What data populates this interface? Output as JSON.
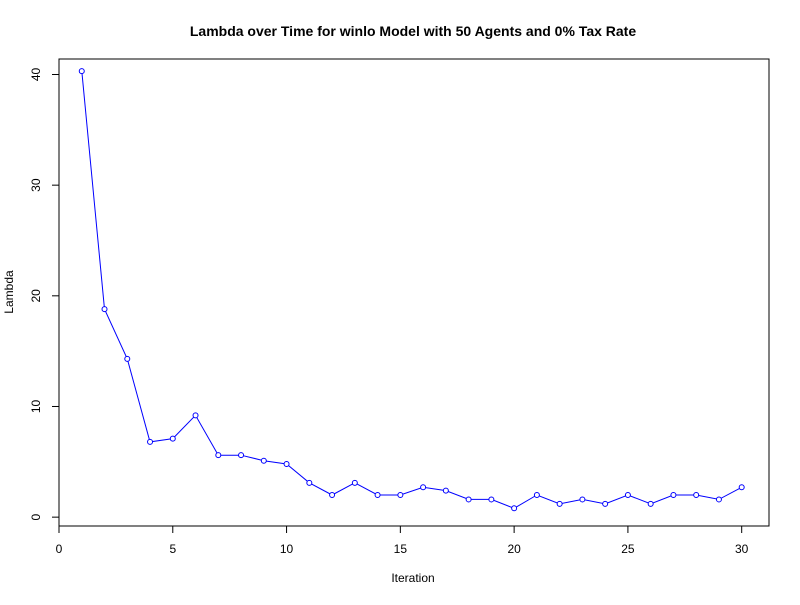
{
  "chart_data": {
    "type": "line",
    "title": "Lambda over Time for winlo Model with 50 Agents and 0% Tax Rate",
    "xlabel": "Iteration",
    "ylabel": "Lambda",
    "xlim": [
      0,
      31.2
    ],
    "ylim": [
      -0.8,
      41.4
    ],
    "xticks": [
      0,
      5,
      10,
      15,
      20,
      25,
      30
    ],
    "yticks": [
      0,
      10,
      20,
      30,
      40
    ],
    "grid": false,
    "legend": "none",
    "series": [
      {
        "color": "#0000ff",
        "marker": "open-circle",
        "x": [
          1,
          2,
          3,
          4,
          5,
          6,
          7,
          8,
          9,
          10,
          11,
          12,
          13,
          14,
          15,
          16,
          17,
          18,
          19,
          20,
          21,
          22,
          23,
          24,
          25,
          26,
          27,
          28,
          29,
          30
        ],
        "values": [
          40.3,
          18.8,
          14.3,
          6.8,
          7.1,
          9.2,
          5.6,
          5.6,
          5.1,
          4.8,
          3.1,
          2.0,
          3.1,
          2.0,
          2.0,
          2.7,
          2.4,
          1.6,
          1.6,
          0.8,
          2.0,
          1.2,
          1.6,
          1.2,
          2.0,
          1.2,
          2.0,
          2.0,
          1.6,
          2.7
        ]
      }
    ]
  }
}
